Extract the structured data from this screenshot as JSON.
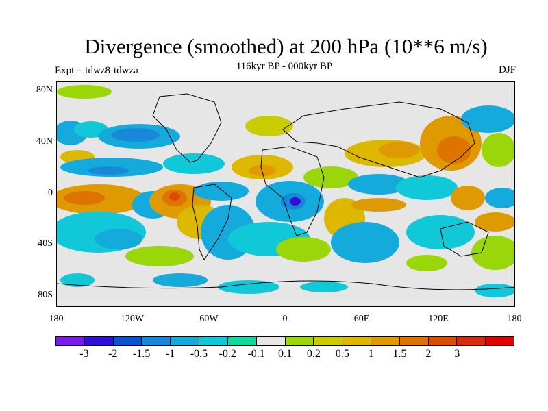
{
  "title": "Divergence (smoothed) at 200 hPa (10**6 m/s)",
  "subtitle": "116kyr BP - 000kyr BP",
  "experiment_label": "Expt = tdwz8-tdwza",
  "season_label": "DJF",
  "map": {
    "projection": "cylindrical equidistant",
    "lon_range": [
      -180,
      180
    ],
    "lat_range": [
      -90,
      90
    ],
    "background_color": "#e6e6e6",
    "lat_ticks": [
      "80N",
      "40N",
      "0",
      "40S",
      "80S"
    ],
    "lon_ticks": [
      "180",
      "120W",
      "60W",
      "0",
      "60E",
      "120E",
      "180"
    ]
  },
  "colorbar": {
    "colors": [
      "#7a1ae8",
      "#3010d8",
      "#0a52d0",
      "#1a88d8",
      "#14aadc",
      "#10c8d8",
      "#12d8a0",
      "#e6e6e6",
      "#9ad60a",
      "#c8cc00",
      "#dcb800",
      "#de9a00",
      "#de7400",
      "#dc4c00",
      "#d82a10",
      "#e00000"
    ],
    "labels": [
      "-3",
      "-2",
      "-1.5",
      "-1",
      "-0.5",
      "-0.2",
      "-0.1",
      "0.1",
      "0.2",
      "0.5",
      "1",
      "1.5",
      "2",
      "3"
    ]
  }
}
